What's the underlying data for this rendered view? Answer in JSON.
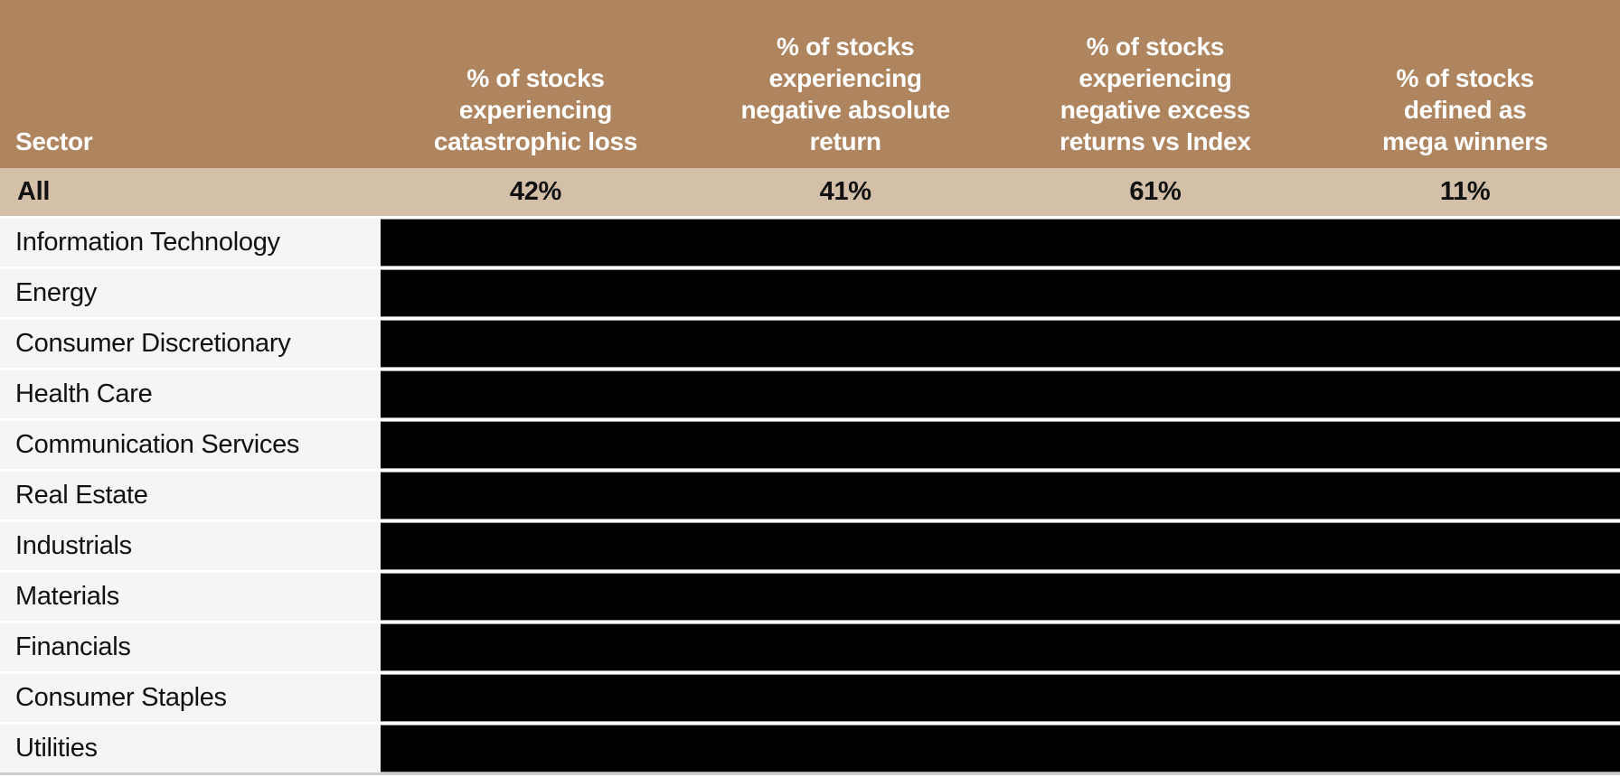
{
  "colors": {
    "header_bg": "#af855f",
    "summary_bg": "#d4bfa9",
    "sector_cell_bg": "#f4f5f7",
    "redacted_cell_bg": "#000000",
    "header_text": "#ffffff",
    "body_text": "#111111",
    "bottom_border": "#cccccc"
  },
  "table": {
    "header": {
      "sector_label": "Sector",
      "col1_label": "% of stocks\nexperiencing\ncatastrophic loss",
      "col2_label": "% of stocks\nexperiencing\nnegative absolute\nreturn",
      "col3_label": "% of stocks\nexperiencing\nnegative excess\nreturns vs Index",
      "col4_label": "% of stocks\ndefined as\nmega winners"
    },
    "summary_row": {
      "label": "All",
      "values": [
        "42%",
        "41%",
        "61%",
        "11%"
      ]
    },
    "sectors": [
      "Information Technology",
      "Energy",
      "Consumer Discretionary",
      "Health Care",
      "Communication Services",
      "Real Estate",
      "Industrials",
      "Materials",
      "Financials",
      "Consumer Staples",
      "Utilities"
    ]
  },
  "chart_data": {
    "type": "table",
    "columns": [
      "Sector",
      "% of stocks experiencing catastrophic loss",
      "% of stocks experiencing negative absolute return",
      "% of stocks experiencing negative excess returns vs Index",
      "% of stocks defined as mega winners"
    ],
    "rows": [
      {
        "sector": "All",
        "values": [
          "42%",
          "41%",
          "61%",
          "11%"
        ],
        "redacted": false
      },
      {
        "sector": "Information Technology",
        "values": [
          null,
          null,
          null,
          null
        ],
        "redacted": true
      },
      {
        "sector": "Energy",
        "values": [
          null,
          null,
          null,
          null
        ],
        "redacted": true
      },
      {
        "sector": "Consumer Discretionary",
        "values": [
          null,
          null,
          null,
          null
        ],
        "redacted": true
      },
      {
        "sector": "Health Care",
        "values": [
          null,
          null,
          null,
          null
        ],
        "redacted": true
      },
      {
        "sector": "Communication Services",
        "values": [
          null,
          null,
          null,
          null
        ],
        "redacted": true
      },
      {
        "sector": "Real Estate",
        "values": [
          null,
          null,
          null,
          null
        ],
        "redacted": true
      },
      {
        "sector": "Industrials",
        "values": [
          null,
          null,
          null,
          null
        ],
        "redacted": true
      },
      {
        "sector": "Materials",
        "values": [
          null,
          null,
          null,
          null
        ],
        "redacted": true
      },
      {
        "sector": "Financials",
        "values": [
          null,
          null,
          null,
          null
        ],
        "redacted": true
      },
      {
        "sector": "Consumer Staples",
        "values": [
          null,
          null,
          null,
          null
        ],
        "redacted": true
      },
      {
        "sector": "Utilities",
        "values": [
          null,
          null,
          null,
          null
        ],
        "redacted": true
      }
    ],
    "notes": "Data cells for individual sector rows are blacked out (redacted) in the source image; only the All row values are visible."
  }
}
